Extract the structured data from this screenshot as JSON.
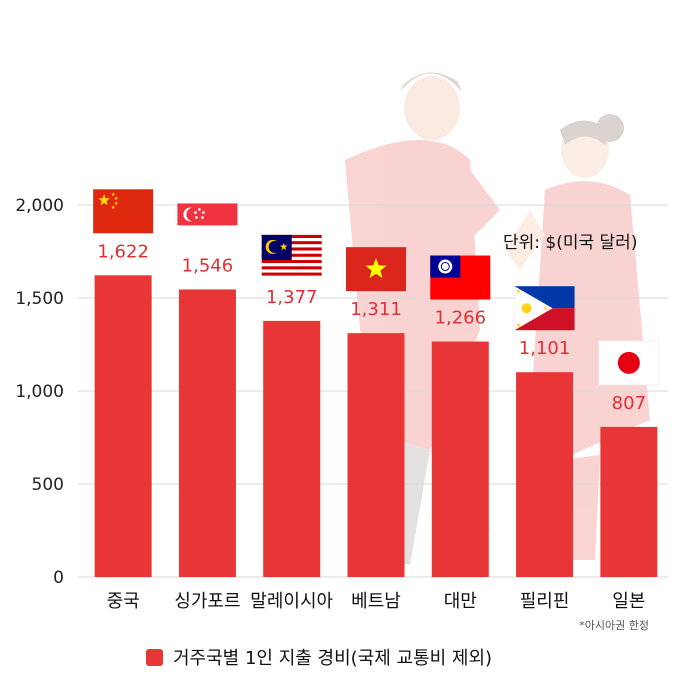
{
  "chart_data": {
    "type": "bar",
    "categories": [
      "중국",
      "싱가포르",
      "말레이시아",
      "베트남",
      "대만",
      "필리핀",
      "일본"
    ],
    "values": [
      1622,
      1546,
      1377,
      1311,
      1266,
      1101,
      807
    ],
    "value_labels": [
      "1,622",
      "1,546",
      "1,377",
      "1,311",
      "1,266",
      "1,101",
      "807"
    ],
    "flags": [
      "china-flag-icon",
      "singapore-flag-icon",
      "malaysia-flag-icon",
      "vietnam-flag-icon",
      "taiwan-flag-icon",
      "philippines-flag-icon",
      "japan-flag-icon"
    ],
    "yticks": [
      0,
      500,
      1000,
      1500,
      2000
    ],
    "ytick_labels": [
      "0",
      "500",
      "1,000",
      "1,500",
      "2,000"
    ],
    "ylim": [
      0,
      2000
    ],
    "grid": true,
    "legend_position": "bottom",
    "series": [
      {
        "name": "거주국별 1인 지출 경비(국제 교통비 제외)",
        "values": [
          1622,
          1546,
          1377,
          1311,
          1266,
          1101,
          807
        ]
      }
    ],
    "bar_color": "#e83535",
    "grid_color": "#d9d9d9"
  },
  "unit_label": "단위: $(미국 달러)",
  "footnote": "*아시아권 한정",
  "legend_label": "거주국별 1인 지출 경비(국제 교통비 제외)",
  "illustration": "traditional-costume-couple-illustration"
}
